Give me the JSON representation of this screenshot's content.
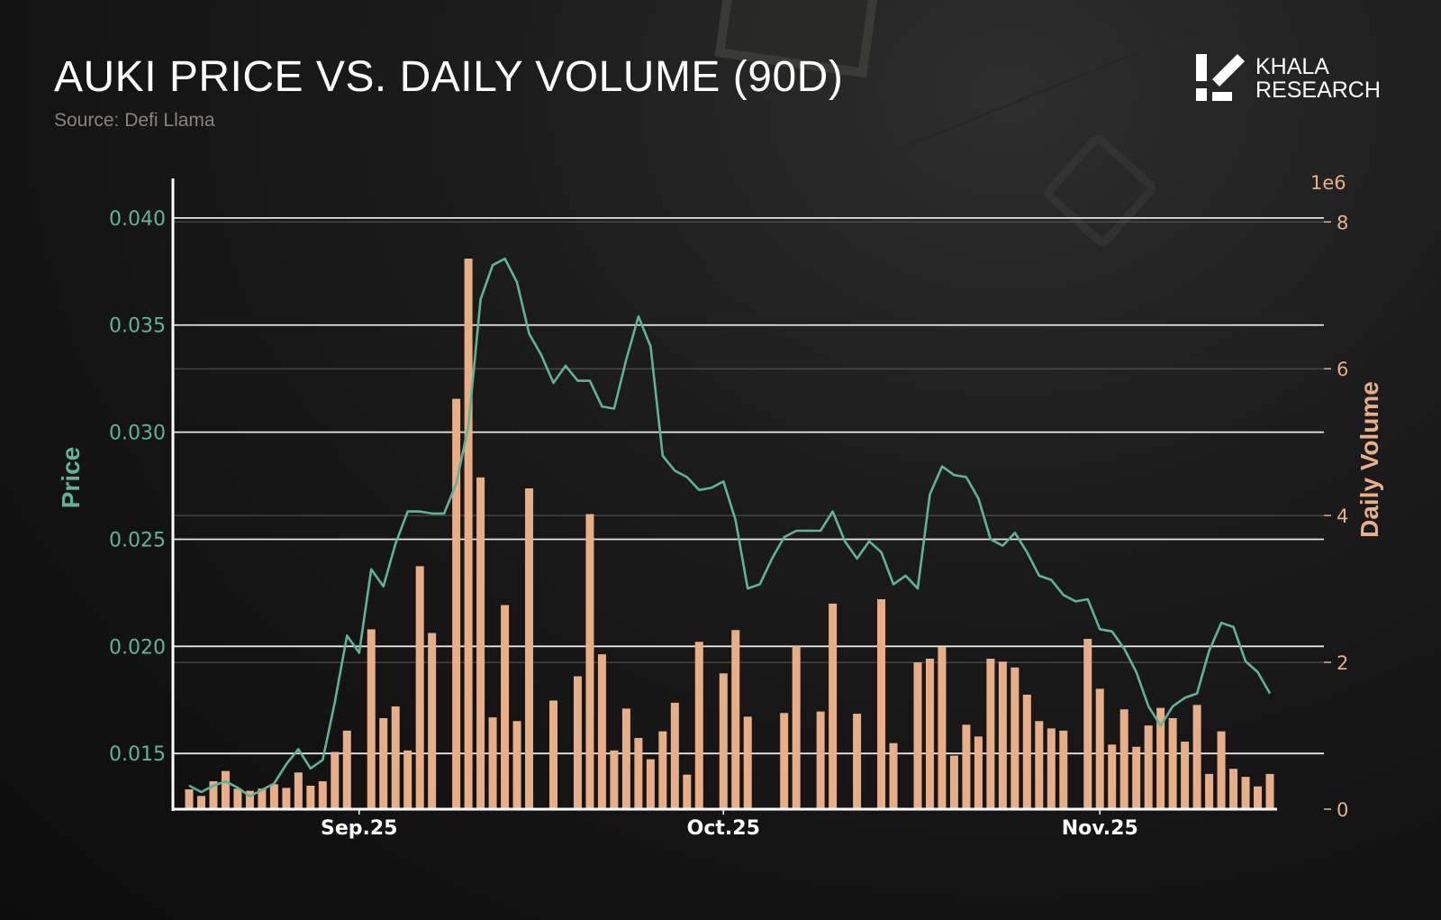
{
  "header": {
    "title": "AUKI PRICE VS. DAILY VOLUME (90D)",
    "source": "Source: Defi Llama"
  },
  "logo": {
    "line1": "KHALA",
    "line2": "RESEARCH"
  },
  "colors": {
    "price": "#5fb39a",
    "volume": "#e8ae87",
    "background": "#151515",
    "grid_major": "#e6e6e6",
    "grid_minor": "#5a5a5a",
    "axis": "#ffffff"
  },
  "chart_data": {
    "type": "bar+line",
    "title": "AUKI PRICE VS. DAILY VOLUME (90D)",
    "subtitle": "Source: Defi Llama",
    "xlabel": "",
    "ylabel_left": "Price",
    "ylabel_right": "Daily Volume",
    "right_axis_scale_label": "1e6",
    "yticks_left": [
      "0.015",
      "0.020",
      "0.025",
      "0.030",
      "0.035",
      "0.040"
    ],
    "yticks_right": [
      "0",
      "2",
      "4",
      "6",
      "8"
    ],
    "ylim_left": [
      0.0124,
      0.0405
    ],
    "ylim_right": [
      0,
      8.2
    ],
    "grid": true,
    "xticks": [
      {
        "label": "Sep.25",
        "day": 15
      },
      {
        "label": "Oct.25",
        "day": 45
      },
      {
        "label": "Nov.25",
        "day": 76
      }
    ],
    "x": [
      1,
      2,
      3,
      4,
      5,
      6,
      7,
      8,
      9,
      10,
      11,
      12,
      13,
      14,
      15,
      16,
      17,
      18,
      19,
      20,
      21,
      22,
      23,
      24,
      25,
      26,
      27,
      28,
      29,
      30,
      31,
      32,
      33,
      34,
      35,
      36,
      37,
      38,
      39,
      40,
      41,
      42,
      43,
      44,
      45,
      46,
      47,
      48,
      49,
      50,
      51,
      52,
      53,
      54,
      55,
      56,
      57,
      58,
      59,
      60,
      61,
      62,
      63,
      64,
      65,
      66,
      67,
      68,
      69,
      70,
      71,
      72,
      73,
      74,
      75,
      76,
      77,
      78,
      79,
      80,
      81,
      82,
      83,
      84,
      85,
      86,
      87,
      88,
      89,
      90
    ],
    "series": [
      {
        "name": "Daily Volume",
        "axis": "right",
        "type": "bar",
        "values": [
          0.27,
          0.18,
          0.38,
          0.52,
          0.28,
          0.25,
          0.28,
          0.34,
          0.29,
          0.5,
          0.32,
          0.38,
          0.78,
          1.07,
          0,
          2.45,
          1.24,
          1.4,
          0.8,
          3.31,
          2.4,
          0,
          5.59,
          7.5,
          4.52,
          1.25,
          2.78,
          1.2,
          4.37,
          0,
          1.48,
          0,
          1.81,
          4.02,
          2.11,
          0.8,
          1.37,
          0.97,
          0.68,
          1.06,
          1.45,
          0.47,
          2.28,
          0,
          1.85,
          2.44,
          1.26,
          0,
          0,
          1.31,
          2.22,
          0,
          1.33,
          2.8,
          0,
          1.3,
          0,
          2.86,
          0.9,
          0,
          2.0,
          2.05,
          2.21,
          0.73,
          1.15,
          0.99,
          2.05,
          2.01,
          1.93,
          1.56,
          1.2,
          1.1,
          1.07,
          0,
          2.32,
          1.64,
          0.88,
          1.36,
          0.85,
          1.14,
          1.38,
          1.24,
          0.92,
          1.42,
          0.48,
          1.06,
          0.55,
          0.44,
          0.31,
          0.48
        ]
      },
      {
        "name": "Price",
        "axis": "left",
        "type": "line",
        "values": [
          0.0135,
          0.0132,
          0.0135,
          0.0137,
          0.0134,
          0.013,
          0.0133,
          0.0136,
          0.0145,
          0.0152,
          0.0143,
          0.0147,
          0.0174,
          0.0205,
          0.0197,
          0.0236,
          0.0228,
          0.0248,
          0.0263,
          0.0263,
          0.0262,
          0.0262,
          0.0276,
          0.0303,
          0.0362,
          0.0378,
          0.0381,
          0.037,
          0.0346,
          0.0336,
          0.0323,
          0.0331,
          0.0324,
          0.0324,
          0.0312,
          0.0311,
          0.0334,
          0.0354,
          0.034,
          0.0289,
          0.0282,
          0.0279,
          0.0273,
          0.0274,
          0.0277,
          0.0259,
          0.0227,
          0.0229,
          0.0241,
          0.0251,
          0.0254,
          0.0254,
          0.0254,
          0.0263,
          0.0249,
          0.0241,
          0.0249,
          0.0244,
          0.0229,
          0.0233,
          0.0227,
          0.0271,
          0.0284,
          0.028,
          0.0279,
          0.0269,
          0.025,
          0.0247,
          0.0253,
          0.0244,
          0.0233,
          0.0231,
          0.0224,
          0.0221,
          0.0222,
          0.0208,
          0.0207,
          0.0199,
          0.0188,
          0.0172,
          0.0163,
          0.0172,
          0.0176,
          0.0178,
          0.0198,
          0.0211,
          0.0209,
          0.0193,
          0.0188,
          0.0178
        ]
      }
    ]
  }
}
